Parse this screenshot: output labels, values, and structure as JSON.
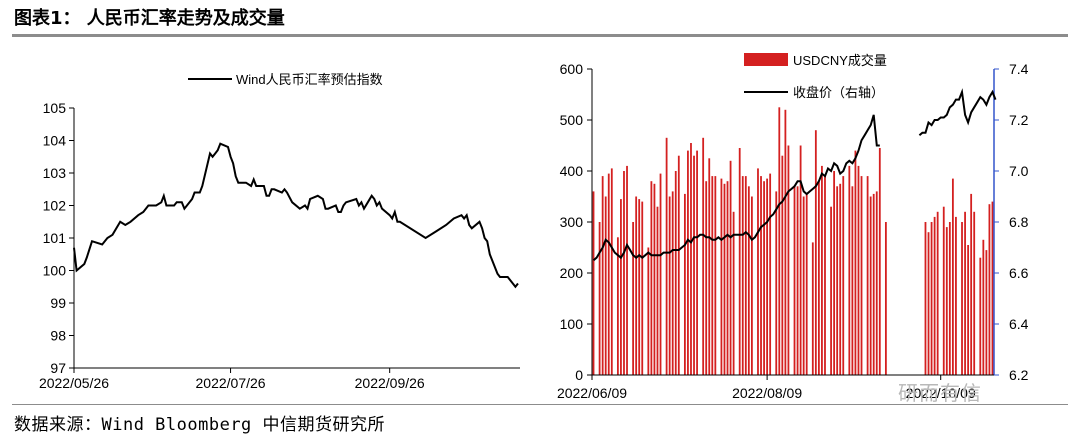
{
  "figure_title": "图表1：  人民币汇率走势及成交量",
  "source": "数据来源：Wind  Bloomberg  中信期货研究所",
  "watermark": "研而有信",
  "chart_data": [
    {
      "type": "line",
      "legend_position": "top",
      "grid": false,
      "series": [
        {
          "name": "Wind人民币汇率预估指数",
          "color": "#000000",
          "points": [
            [
              "2022/05/26",
              100.7
            ],
            [
              "2022/05/27",
              100.0
            ],
            [
              "2022/05/30",
              100.2
            ],
            [
              "2022/05/31",
              100.4
            ],
            [
              "2022/06/02",
              100.9
            ],
            [
              "2022/06/06",
              100.8
            ],
            [
              "2022/06/08",
              101.0
            ],
            [
              "2022/06/10",
              101.1
            ],
            [
              "2022/06/13",
              101.5
            ],
            [
              "2022/06/15",
              101.4
            ],
            [
              "2022/06/17",
              101.5
            ],
            [
              "2022/06/20",
              101.7
            ],
            [
              "2022/06/22",
              101.8
            ],
            [
              "2022/06/24",
              102.0
            ],
            [
              "2022/06/27",
              102.0
            ],
            [
              "2022/06/29",
              102.1
            ],
            [
              "2022/06/30",
              102.3
            ],
            [
              "2022/07/01",
              102.0
            ],
            [
              "2022/07/04",
              102.0
            ],
            [
              "2022/07/05",
              102.1
            ],
            [
              "2022/07/07",
              102.1
            ],
            [
              "2022/07/08",
              101.9
            ],
            [
              "2022/07/11",
              102.2
            ],
            [
              "2022/07/12",
              102.4
            ],
            [
              "2022/07/14",
              102.4
            ],
            [
              "2022/07/15",
              102.6
            ],
            [
              "2022/07/18",
              103.6
            ],
            [
              "2022/07/19",
              103.5
            ],
            [
              "2022/07/20",
              103.6
            ],
            [
              "2022/07/21",
              103.7
            ],
            [
              "2022/07/22",
              103.9
            ],
            [
              "2022/07/25",
              103.8
            ],
            [
              "2022/07/26",
              103.5
            ],
            [
              "2022/07/27",
              103.3
            ],
            [
              "2022/07/28",
              102.9
            ],
            [
              "2022/07/29",
              102.7
            ],
            [
              "2022/08/01",
              102.7
            ],
            [
              "2022/08/03",
              102.6
            ],
            [
              "2022/08/04",
              102.8
            ],
            [
              "2022/08/05",
              102.6
            ],
            [
              "2022/08/08",
              102.6
            ],
            [
              "2022/08/09",
              102.3
            ],
            [
              "2022/08/10",
              102.3
            ],
            [
              "2022/08/11",
              102.5
            ],
            [
              "2022/08/12",
              102.5
            ],
            [
              "2022/08/15",
              102.4
            ],
            [
              "2022/08/16",
              102.5
            ],
            [
              "2022/08/17",
              102.4
            ],
            [
              "2022/08/19",
              102.1
            ],
            [
              "2022/08/22",
              101.9
            ],
            [
              "2022/08/24",
              102.0
            ],
            [
              "2022/08/25",
              101.9
            ],
            [
              "2022/08/26",
              102.2
            ],
            [
              "2022/08/29",
              102.3
            ],
            [
              "2022/08/31",
              102.2
            ],
            [
              "2022/09/01",
              101.9
            ],
            [
              "2022/09/02",
              101.9
            ],
            [
              "2022/09/05",
              102.0
            ],
            [
              "2022/09/06",
              101.8
            ],
            [
              "2022/09/07",
              101.8
            ],
            [
              "2022/09/08",
              102.0
            ],
            [
              "2022/09/09",
              102.1
            ],
            [
              "2022/09/13",
              102.2
            ],
            [
              "2022/09/14",
              102.0
            ],
            [
              "2022/09/15",
              102.1
            ],
            [
              "2022/09/16",
              101.9
            ],
            [
              "2022/09/19",
              102.3
            ],
            [
              "2022/09/20",
              102.2
            ],
            [
              "2022/09/21",
              102.0
            ],
            [
              "2022/09/22",
              102.1
            ],
            [
              "2022/09/23",
              101.9
            ],
            [
              "2022/09/26",
              101.7
            ],
            [
              "2022/09/27",
              101.6
            ],
            [
              "2022/09/28",
              101.8
            ],
            [
              "2022/09/29",
              101.5
            ],
            [
              "2022/09/30",
              101.5
            ],
            [
              "2022/10/10",
              101.0
            ],
            [
              "2022/10/14",
              101.2
            ],
            [
              "2022/10/18",
              101.4
            ],
            [
              "2022/10/21",
              101.6
            ],
            [
              "2022/10/24",
              101.7
            ],
            [
              "2022/10/25",
              101.6
            ],
            [
              "2022/10/26",
              101.7
            ],
            [
              "2022/10/27",
              101.4
            ],
            [
              "2022/10/28",
              101.3
            ],
            [
              "2022/10/31",
              101.5
            ],
            [
              "2022/11/01",
              101.3
            ],
            [
              "2022/11/02",
              101.0
            ],
            [
              "2022/11/03",
              100.9
            ],
            [
              "2022/11/04",
              100.5
            ],
            [
              "2022/11/07",
              99.9
            ],
            [
              "2022/11/08",
              99.8
            ],
            [
              "2022/11/10",
              99.8
            ],
            [
              "2022/11/11",
              99.8
            ],
            [
              "2022/11/14",
              99.5
            ],
            [
              "2022/11/15",
              99.6
            ]
          ]
        }
      ],
      "x_ticks": [
        "2022/05/26",
        "2022/07/26",
        "2022/09/26"
      ],
      "ylim": [
        97,
        105
      ],
      "y_ticks": [
        97,
        98,
        99,
        100,
        101,
        102,
        103,
        104,
        105
      ]
    },
    {
      "type": "bar+line",
      "legend_position": "top",
      "grid": false,
      "x_ticks": [
        "2022/06/09",
        "2022/08/09",
        "2022/10/09"
      ],
      "ylim_left": [
        0,
        600
      ],
      "y_ticks_left": [
        0,
        100,
        200,
        300,
        400,
        500,
        600
      ],
      "ylim_right": [
        6.2,
        7.4
      ],
      "y_ticks_right": [
        "6.2",
        "6.4",
        "6.6",
        "6.8",
        "7.0",
        "7.2",
        "7.4"
      ],
      "bar_series": {
        "name": "USDCNY成交量",
        "color": "#d42020",
        "values": [
          360,
          0,
          300,
          390,
          350,
          395,
          405,
          0,
          270,
          345,
          400,
          410,
          0,
          300,
          350,
          345,
          340,
          0,
          250,
          380,
          375,
          330,
          395,
          0,
          465,
          350,
          360,
          400,
          430,
          0,
          355,
          440,
          455,
          430,
          440,
          0,
          465,
          380,
          425,
          390,
          390,
          0,
          385,
          375,
          380,
          420,
          320,
          0,
          445,
          390,
          390,
          370,
          350,
          0,
          405,
          390,
          380,
          385,
          395,
          0,
          360,
          525,
          430,
          520,
          450,
          0,
          370,
          370,
          450,
          350,
          355,
          0,
          260,
          480,
          380,
          410,
          390,
          0,
          330,
          400,
          370,
          375,
          390,
          0,
          410,
          370,
          440,
          410,
          390,
          0,
          390,
          350,
          355,
          360,
          445,
          0,
          300,
          0,
          0,
          0,
          0,
          0,
          0,
          0,
          0,
          0,
          0,
          0,
          0,
          300,
          280,
          300,
          310,
          320,
          0,
          330,
          290,
          300,
          385,
          310,
          0,
          300,
          320,
          255,
          355,
          320,
          0,
          230,
          265,
          245,
          335,
          340
        ]
      },
      "line_series": {
        "name": "收盘价（右轴）",
        "color": "#000000",
        "values": [
          6.65,
          6.66,
          6.68,
          6.7,
          6.73,
          6.72,
          6.7,
          6.68,
          6.67,
          6.66,
          6.68,
          6.71,
          6.69,
          6.67,
          6.66,
          6.67,
          6.66,
          6.67,
          6.68,
          6.67,
          6.67,
          6.67,
          6.67,
          6.68,
          6.68,
          6.68,
          6.69,
          6.69,
          6.69,
          6.7,
          6.71,
          6.73,
          6.72,
          6.74,
          6.74,
          6.75,
          6.75,
          6.74,
          6.74,
          6.73,
          6.73,
          6.74,
          6.73,
          6.74,
          6.75,
          6.74,
          6.75,
          6.75,
          6.75,
          6.75,
          6.76,
          6.75,
          6.73,
          6.74,
          6.76,
          6.78,
          6.79,
          6.8,
          6.82,
          6.83,
          6.85,
          6.87,
          6.88,
          6.9,
          6.92,
          6.93,
          6.94,
          6.96,
          6.96,
          6.92,
          6.91,
          6.92,
          6.93,
          6.94,
          6.96,
          6.99,
          6.98,
          7.01,
          7.0,
          7.03,
          7.02,
          6.99,
          7.0,
          7.03,
          7.04,
          7.03,
          7.05,
          7.08,
          7.12,
          7.14,
          7.16,
          7.18,
          7.22,
          7.1,
          7.1,
          null,
          null,
          null,
          null,
          null,
          null,
          null,
          null,
          null,
          null,
          null,
          null,
          7.14,
          7.15,
          7.15,
          7.19,
          7.18,
          7.2,
          7.2,
          7.21,
          7.21,
          7.22,
          7.25,
          7.26,
          7.28,
          7.28,
          7.31,
          7.22,
          7.19,
          7.23,
          7.25,
          7.27,
          7.29,
          7.28,
          7.26,
          7.29,
          7.31,
          7.28
        ]
      }
    }
  ]
}
